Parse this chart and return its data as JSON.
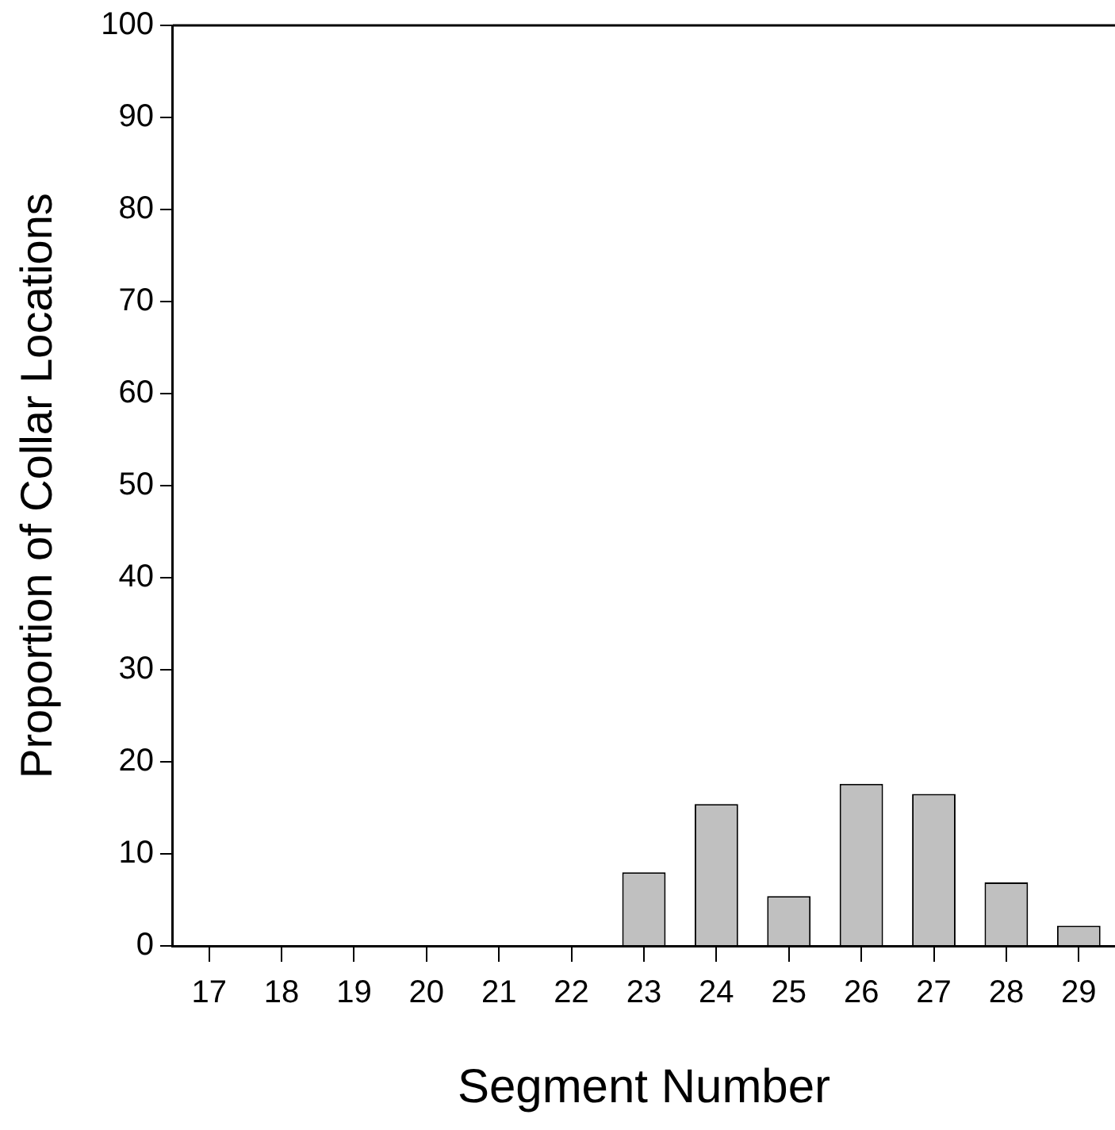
{
  "chart_data": {
    "type": "bar",
    "xlabel": "Segment Number",
    "ylabel": "Proportion of Collar Locations",
    "categories": [
      "17",
      "18",
      "19",
      "20",
      "21",
      "22",
      "23",
      "24",
      "25",
      "26",
      "27",
      "28",
      "29"
    ],
    "values": [
      0,
      0,
      0,
      0,
      0,
      0,
      8.0,
      15.4,
      5.4,
      17.6,
      16.5,
      6.9,
      2.2
    ],
    "color": "#c0c0c0",
    "ylim": [
      0,
      100
    ],
    "yticks": [
      0,
      10,
      20,
      30,
      40,
      50,
      60,
      70,
      80,
      90,
      100
    ],
    "grid": false,
    "legend": false
  }
}
